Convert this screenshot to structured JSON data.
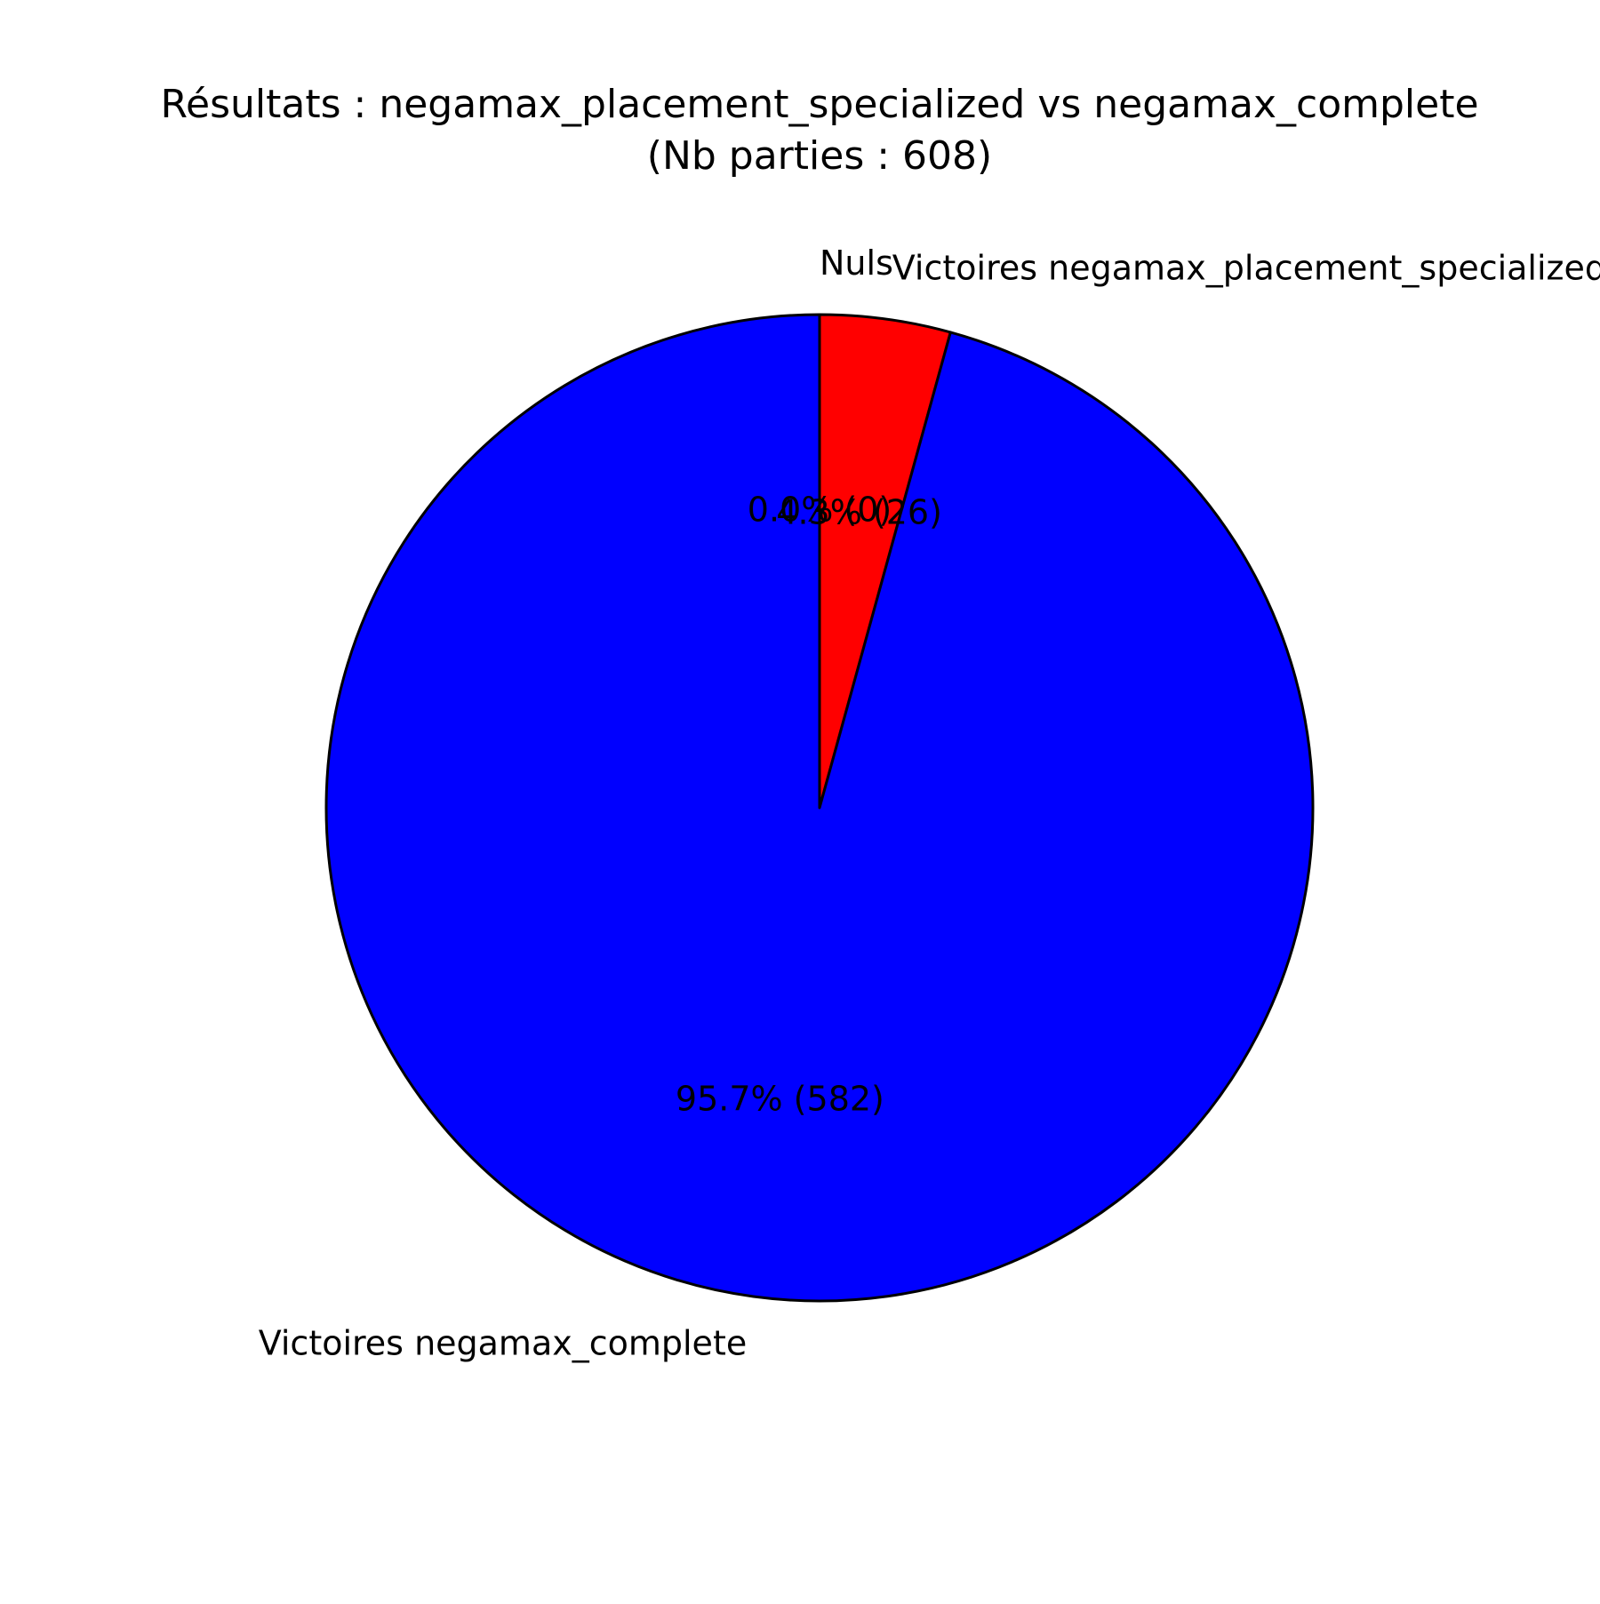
{
  "chart_data": {
    "type": "pie",
    "title": "Résultats : negamax_placement_specialized vs negamax_complete",
    "subtitle": "(Nb parties : 608)",
    "start_angle_deg": 90,
    "direction": "clockwise",
    "edge_color": "#000000",
    "slices": [
      {
        "label": "Nuls",
        "value": 0,
        "percent_label": "0.0% (0)",
        "color": "#00ff00"
      },
      {
        "label": "Victoires negamax_placement_specialized",
        "value": 26,
        "percent_label": "4.3% (26)",
        "color": "#ff0000"
      },
      {
        "label": "Victoires negamax_complete",
        "value": 582,
        "percent_label": "95.7% (582)",
        "color": "#0000ff"
      }
    ]
  }
}
